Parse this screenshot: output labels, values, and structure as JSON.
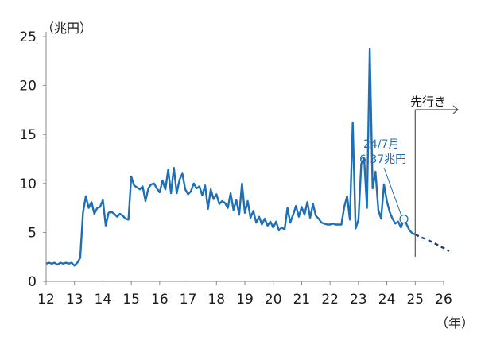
{
  "chart_data": {
    "type": "line",
    "y_unit": "（兆円）",
    "x_unit": "（年）",
    "xlim": [
      12,
      26
    ],
    "ylim": [
      0,
      25
    ],
    "x_ticks": [
      "12",
      "13",
      "14",
      "15",
      "16",
      "17",
      "18",
      "19",
      "20",
      "21",
      "22",
      "23",
      "24",
      "25",
      "26"
    ],
    "y_ticks": [
      "0",
      "5",
      "10",
      "15",
      "20",
      "25"
    ],
    "grid": false,
    "colors": {
      "series": "#1f6fb6",
      "axis": "#8a8a8a",
      "text": "#1a1a1a"
    },
    "series": [
      {
        "style": "solid",
        "points": [
          [
            12.0,
            1.8
          ],
          [
            12.1,
            1.9
          ],
          [
            12.2,
            1.8
          ],
          [
            12.3,
            1.9
          ],
          [
            12.4,
            1.7
          ],
          [
            12.5,
            1.9
          ],
          [
            12.6,
            1.8
          ],
          [
            12.7,
            1.9
          ],
          [
            12.8,
            1.8
          ],
          [
            12.9,
            1.9
          ],
          [
            13.0,
            1.6
          ],
          [
            13.1,
            1.9
          ],
          [
            13.2,
            2.4
          ],
          [
            13.3,
            7.0
          ],
          [
            13.4,
            8.7
          ],
          [
            13.5,
            7.5
          ],
          [
            13.6,
            8.1
          ],
          [
            13.7,
            6.9
          ],
          [
            13.8,
            7.5
          ],
          [
            13.9,
            7.6
          ],
          [
            14.0,
            8.3
          ],
          [
            14.1,
            5.7
          ],
          [
            14.2,
            7.0
          ],
          [
            14.3,
            7.1
          ],
          [
            14.4,
            6.9
          ],
          [
            14.5,
            6.6
          ],
          [
            14.6,
            6.9
          ],
          [
            14.7,
            6.7
          ],
          [
            14.8,
            6.4
          ],
          [
            14.9,
            6.3
          ],
          [
            15.0,
            10.7
          ],
          [
            15.1,
            9.8
          ],
          [
            15.2,
            9.6
          ],
          [
            15.3,
            9.4
          ],
          [
            15.4,
            9.7
          ],
          [
            15.5,
            8.2
          ],
          [
            15.6,
            9.5
          ],
          [
            15.7,
            9.9
          ],
          [
            15.8,
            10.0
          ],
          [
            15.9,
            9.5
          ],
          [
            16.0,
            9.1
          ],
          [
            16.1,
            10.3
          ],
          [
            16.2,
            9.4
          ],
          [
            16.3,
            11.4
          ],
          [
            16.4,
            9.0
          ],
          [
            16.5,
            11.6
          ],
          [
            16.6,
            9.0
          ],
          [
            16.7,
            10.4
          ],
          [
            16.8,
            11.0
          ],
          [
            16.9,
            9.4
          ],
          [
            17.0,
            8.9
          ],
          [
            17.1,
            9.2
          ],
          [
            17.2,
            10.0
          ],
          [
            17.3,
            9.5
          ],
          [
            17.4,
            9.7
          ],
          [
            17.5,
            8.8
          ],
          [
            17.6,
            9.8
          ],
          [
            17.7,
            7.4
          ],
          [
            17.8,
            9.4
          ],
          [
            17.9,
            8.4
          ],
          [
            18.0,
            8.9
          ],
          [
            18.1,
            7.9
          ],
          [
            18.2,
            8.2
          ],
          [
            18.3,
            8.0
          ],
          [
            18.4,
            7.5
          ],
          [
            18.5,
            9.0
          ],
          [
            18.6,
            7.3
          ],
          [
            18.7,
            8.3
          ],
          [
            18.8,
            6.8
          ],
          [
            18.9,
            10.0
          ],
          [
            19.0,
            7.0
          ],
          [
            19.1,
            8.2
          ],
          [
            19.2,
            6.5
          ],
          [
            19.3,
            7.2
          ],
          [
            19.4,
            6.0
          ],
          [
            19.5,
            6.6
          ],
          [
            19.6,
            5.8
          ],
          [
            19.7,
            6.4
          ],
          [
            19.8,
            5.7
          ],
          [
            19.9,
            6.1
          ],
          [
            20.0,
            5.5
          ],
          [
            20.1,
            6.1
          ],
          [
            20.2,
            5.2
          ],
          [
            20.3,
            5.5
          ],
          [
            20.4,
            5.3
          ],
          [
            20.5,
            7.5
          ],
          [
            20.6,
            6.0
          ],
          [
            20.7,
            6.8
          ],
          [
            20.8,
            7.7
          ],
          [
            20.9,
            6.6
          ],
          [
            21.0,
            7.6
          ],
          [
            21.1,
            6.8
          ],
          [
            21.2,
            8.1
          ],
          [
            21.3,
            6.5
          ],
          [
            21.4,
            7.9
          ],
          [
            21.5,
            6.7
          ],
          [
            21.6,
            6.4
          ],
          [
            21.7,
            6.0
          ],
          [
            21.8,
            5.9
          ],
          [
            21.9,
            5.8
          ],
          [
            22.0,
            5.8
          ],
          [
            22.1,
            5.9
          ],
          [
            22.2,
            5.8
          ],
          [
            22.3,
            5.8
          ],
          [
            22.4,
            5.8
          ],
          [
            22.5,
            7.6
          ],
          [
            22.6,
            8.7
          ],
          [
            22.7,
            6.3
          ],
          [
            22.8,
            16.2
          ],
          [
            22.9,
            5.4
          ],
          [
            23.0,
            6.3
          ],
          [
            23.1,
            12.0
          ],
          [
            23.2,
            12.6
          ],
          [
            23.3,
            7.5
          ],
          [
            23.4,
            23.7
          ],
          [
            23.5,
            9.5
          ],
          [
            23.6,
            11.2
          ],
          [
            23.7,
            7.3
          ],
          [
            23.8,
            6.4
          ],
          [
            23.9,
            9.9
          ],
          [
            24.0,
            8.2
          ],
          [
            24.1,
            7.1
          ],
          [
            24.2,
            6.4
          ],
          [
            24.3,
            5.9
          ],
          [
            24.4,
            6.1
          ],
          [
            24.5,
            5.5
          ],
          [
            24.6,
            6.37
          ],
          [
            24.7,
            5.8
          ],
          [
            24.8,
            5.2
          ],
          [
            24.9,
            4.9
          ],
          [
            25.0,
            4.8
          ]
        ]
      },
      {
        "style": "dashed",
        "points": [
          [
            25.0,
            4.8
          ],
          [
            25.2,
            4.5
          ],
          [
            25.4,
            4.3
          ],
          [
            25.6,
            4.0
          ],
          [
            25.8,
            3.7
          ],
          [
            26.0,
            3.4
          ],
          [
            26.2,
            3.1
          ]
        ]
      }
    ],
    "annotations": {
      "point_label_1": "24/7月",
      "point_label_2": "6.37兆円",
      "point": [
        24.6,
        6.37
      ],
      "divider_x": 25,
      "forecast_label": "先行き"
    }
  }
}
